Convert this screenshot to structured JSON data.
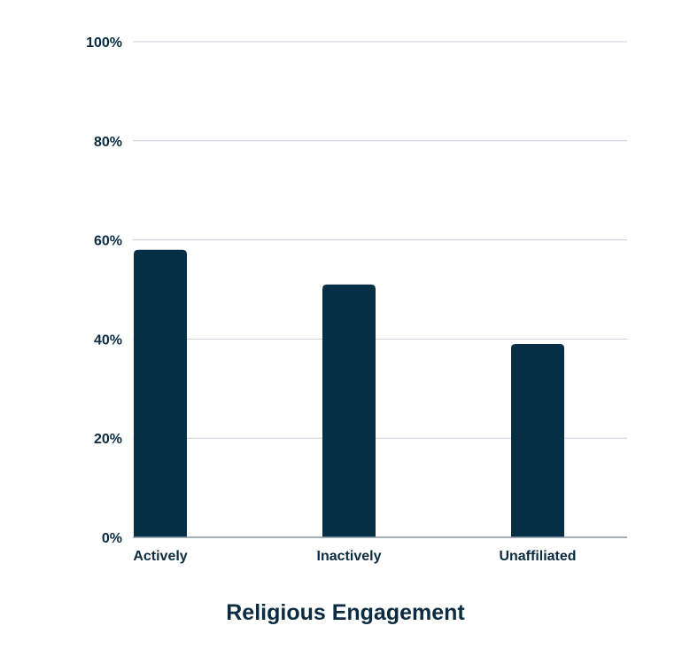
{
  "colors": {
    "bar": "#062f46",
    "text": "#0b2b40",
    "grid": "#c9d0dc",
    "axis": "#8a96a8",
    "background": "#ffffff"
  },
  "chart_data": {
    "type": "bar",
    "title": "",
    "xlabel": "Religious Engagement",
    "ylabel": "",
    "categories": [
      "Actively",
      "Inactively",
      "Unaffiliated"
    ],
    "values": [
      58,
      51,
      39
    ],
    "ylim": [
      0,
      100
    ],
    "yticks": [
      0,
      20,
      40,
      60,
      80,
      100
    ],
    "ytick_labels": [
      "0%",
      "20%",
      "40%",
      "60%",
      "80%",
      "100%"
    ],
    "grid": true,
    "legend": "none"
  }
}
